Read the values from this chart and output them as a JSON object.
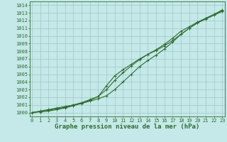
{
  "xlabel": "Graphe pression niveau de la mer (hPa)",
  "x": [
    0,
    1,
    2,
    3,
    4,
    5,
    6,
    7,
    8,
    9,
    10,
    11,
    12,
    13,
    14,
    15,
    16,
    17,
    18,
    19,
    20,
    21,
    22,
    23
  ],
  "line1": [
    1000.0,
    1000.2,
    1000.4,
    1000.6,
    1000.8,
    1001.0,
    1001.2,
    1001.5,
    1001.8,
    1002.2,
    1003.0,
    1004.0,
    1005.0,
    1006.0,
    1006.8,
    1007.5,
    1008.3,
    1009.2,
    1010.2,
    1011.0,
    1011.7,
    1012.3,
    1012.8,
    1013.4
  ],
  "line2": [
    1000.0,
    1000.15,
    1000.3,
    1000.5,
    1000.7,
    1001.0,
    1001.3,
    1001.7,
    1002.1,
    1003.0,
    1004.2,
    1005.2,
    1006.1,
    1006.9,
    1007.6,
    1008.2,
    1008.9,
    1009.7,
    1010.6,
    1011.2,
    1011.8,
    1012.3,
    1012.8,
    1013.3
  ],
  "line3": [
    1000.0,
    1000.1,
    1000.2,
    1000.4,
    1000.6,
    1000.9,
    1001.2,
    1001.6,
    1002.1,
    1003.5,
    1004.8,
    1005.6,
    1006.3,
    1007.0,
    1007.6,
    1008.1,
    1008.7,
    1009.4,
    1010.2,
    1011.0,
    1011.7,
    1012.2,
    1012.7,
    1013.2
  ],
  "line_color": "#2d6e2d",
  "bg_color": "#c5e8e8",
  "grid_color": "#9dc8c8",
  "ylim": [
    999.5,
    1014.5
  ],
  "xlim": [
    -0.3,
    23.3
  ],
  "yticks": [
    1000,
    1001,
    1002,
    1003,
    1004,
    1005,
    1006,
    1007,
    1008,
    1009,
    1010,
    1011,
    1012,
    1013,
    1014
  ],
  "xticks": [
    0,
    1,
    2,
    3,
    4,
    5,
    6,
    7,
    8,
    9,
    10,
    11,
    12,
    13,
    14,
    15,
    16,
    17,
    18,
    19,
    20,
    21,
    22,
    23
  ],
  "tick_fontsize": 5.0,
  "xlabel_fontsize": 6.5,
  "marker": "+"
}
